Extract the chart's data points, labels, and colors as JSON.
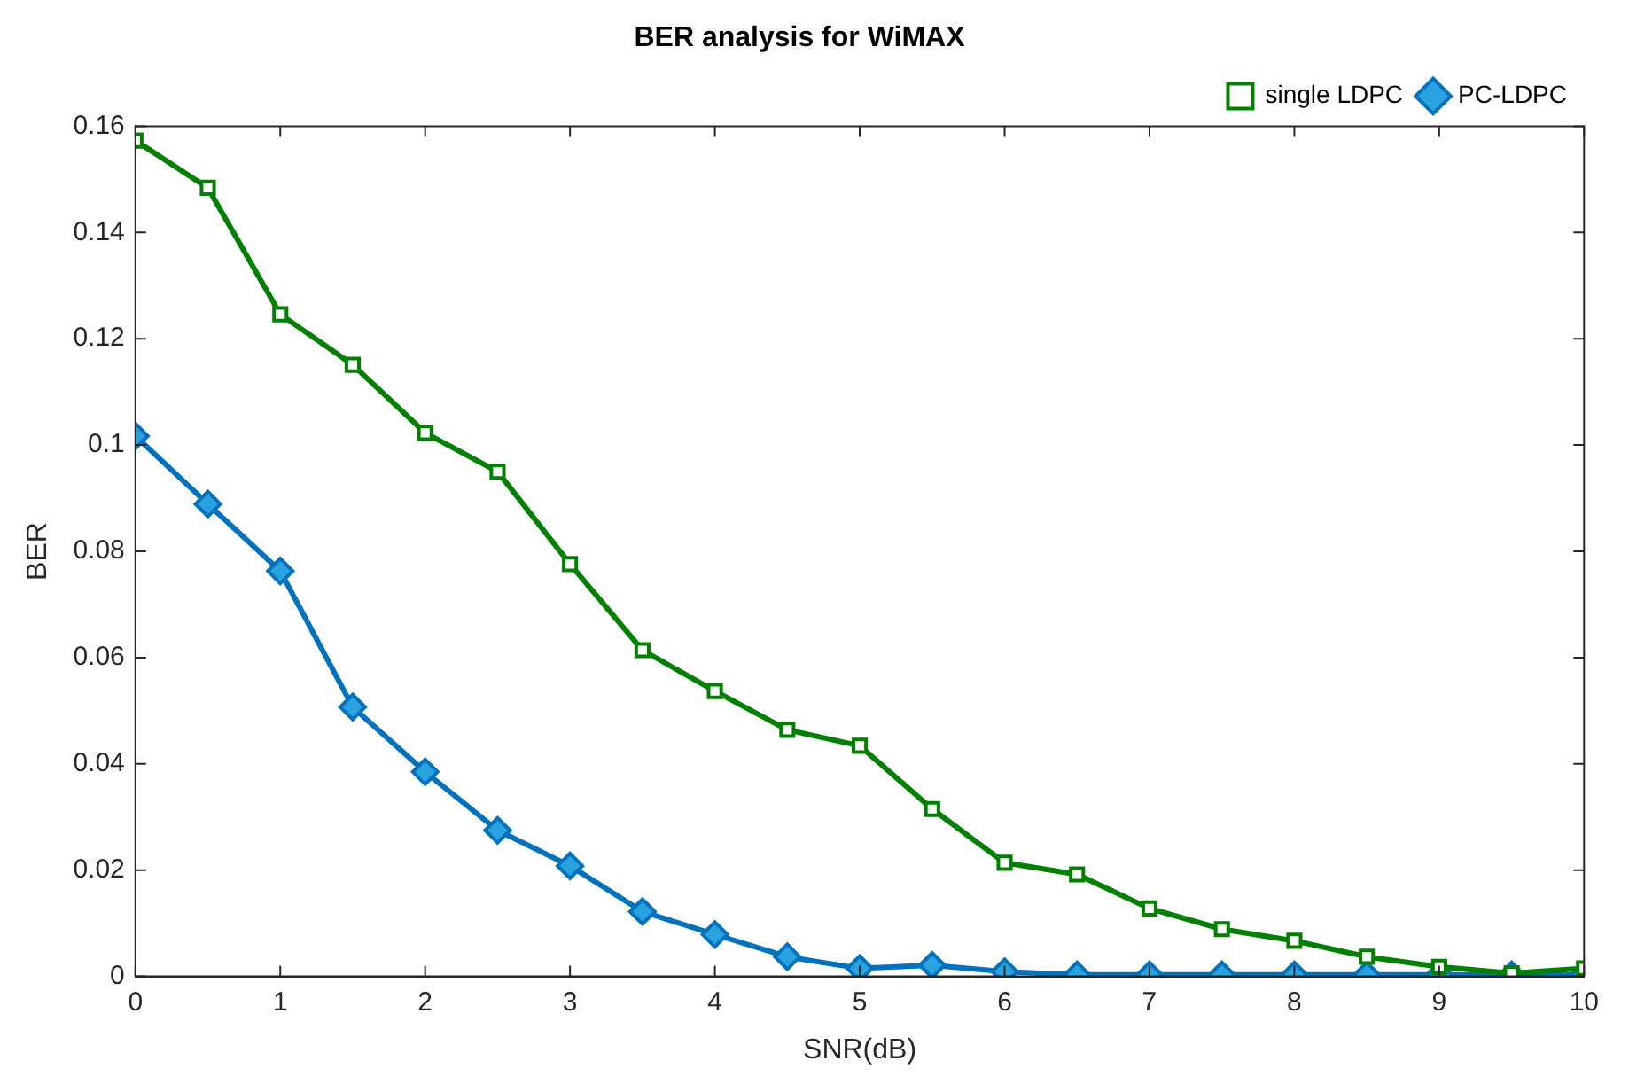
{
  "chart_data": {
    "type": "line",
    "title": "BER analysis for WiMAX",
    "xlabel": "SNR(dB)",
    "ylabel": "BER",
    "x": [
      0,
      0.5,
      1,
      1.5,
      2,
      2.5,
      3,
      3.5,
      4,
      4.5,
      5,
      5.5,
      6,
      6.5,
      7,
      7.5,
      8,
      8.5,
      9,
      9.5,
      10
    ],
    "series": [
      {
        "name": "PC-LDPC",
        "color": "#0072bd",
        "marker": "diamond",
        "values": [
          0.1017,
          0.0889,
          0.0763,
          0.0507,
          0.0385,
          0.0275,
          0.0208,
          0.0122,
          0.0079,
          0.0037,
          0.0015,
          0.0021,
          0.0009,
          0.0003,
          0.0003,
          0.0003,
          0.0003,
          0.0003,
          0.0003,
          0.0003,
          0.0003
        ]
      },
      {
        "name": "single LDPC",
        "color": "#008000",
        "marker": "square",
        "values": [
          0.1573,
          0.1484,
          0.1246,
          0.1151,
          0.1023,
          0.095,
          0.0776,
          0.0614,
          0.0537,
          0.0464,
          0.0434,
          0.0315,
          0.0214,
          0.0192,
          0.0128,
          0.0089,
          0.0067,
          0.0037,
          0.0018,
          0.0006,
          0.0015
        ]
      }
    ],
    "xlim": [
      0,
      10
    ],
    "xticks": [
      0,
      1,
      2,
      3,
      4,
      5,
      6,
      7,
      8,
      9,
      10
    ],
    "ylim": [
      0,
      0.16
    ],
    "yticks": [
      0,
      0.02,
      0.04,
      0.06,
      0.08,
      0.1,
      0.12,
      0.14,
      0.16
    ],
    "grid": false,
    "legend": "top right",
    "line_style": "solid"
  }
}
